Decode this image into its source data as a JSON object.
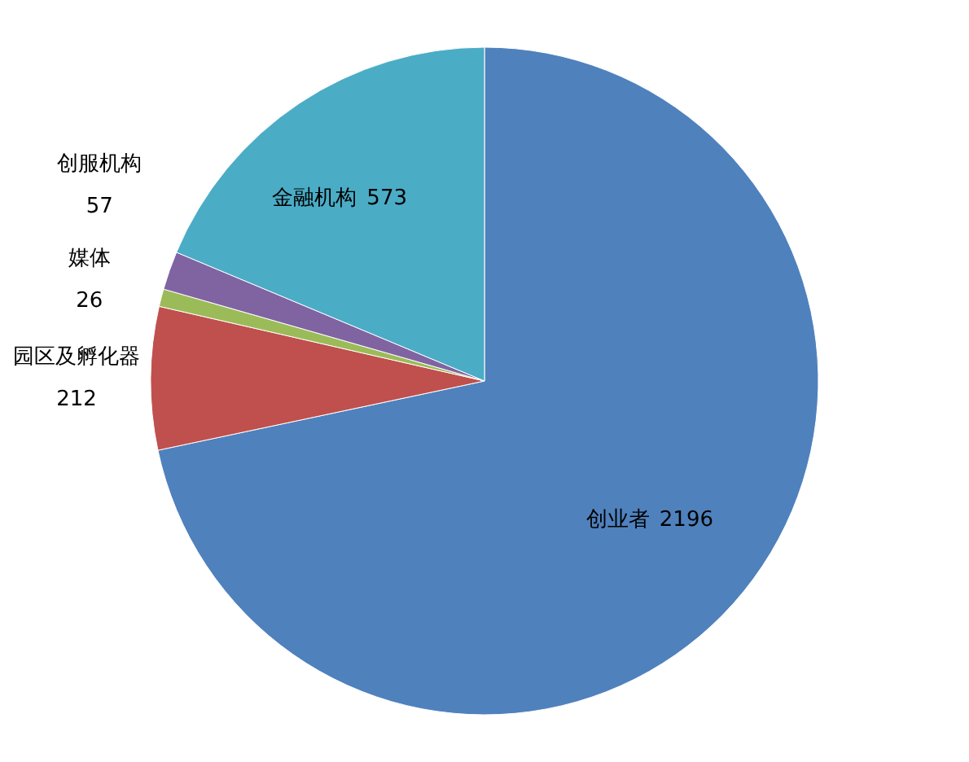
{
  "chart_data": {
    "type": "pie",
    "categories": [
      "创业者",
      "园区及孵化器",
      "媒体",
      "创服机构",
      "金融机构"
    ],
    "values": [
      2196,
      212,
      26,
      57,
      573
    ],
    "colors": [
      "#4f81bd",
      "#c0504d",
      "#9bbb59",
      "#8064a2",
      "#4bacc6"
    ],
    "data_labels": true
  }
}
